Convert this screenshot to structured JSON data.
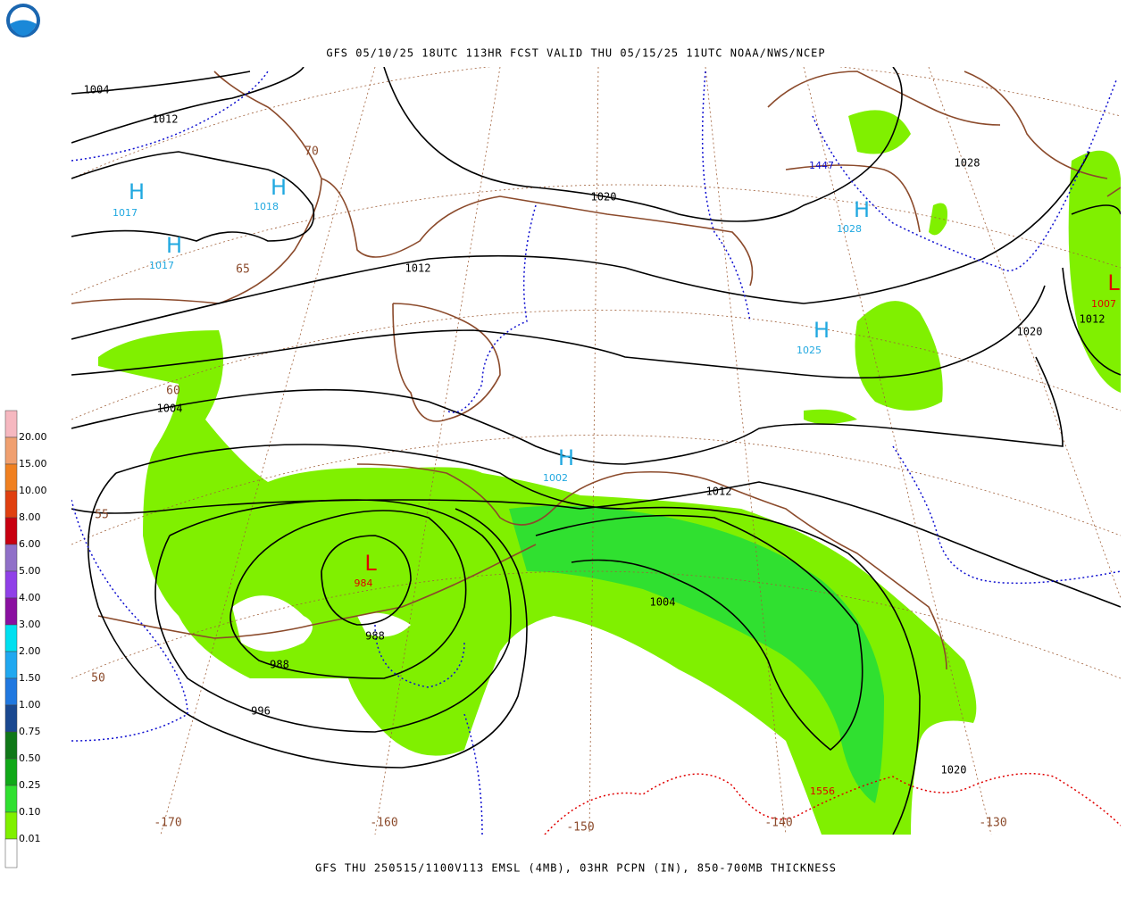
{
  "header": {
    "title": "GFS 05/10/25 18UTC 113HR FCST VALID THU 05/15/25 11UTC NOAA/NWS/NCEP"
  },
  "footer": {
    "caption": "GFS THU 250515/1100V113 EMSL (4MB), 03HR PCPN (IN), 850-700MB THICKNESS"
  },
  "legend": {
    "entries": [
      {
        "label": "20.00",
        "color": "#f6b8c0"
      },
      {
        "label": "15.00",
        "color": "#f0a070"
      },
      {
        "label": "10.00",
        "color": "#f08020"
      },
      {
        "label": "8.00",
        "color": "#e04010"
      },
      {
        "label": "6.00",
        "color": "#c80010"
      },
      {
        "label": "5.00",
        "color": "#9070c8"
      },
      {
        "label": "4.00",
        "color": "#9040e8"
      },
      {
        "label": "3.00",
        "color": "#8a10a0"
      },
      {
        "label": "2.00",
        "color": "#00e0f0"
      },
      {
        "label": "1.50",
        "color": "#20a8f0"
      },
      {
        "label": "1.00",
        "color": "#2078e0"
      },
      {
        "label": "0.75",
        "color": "#1a4890"
      },
      {
        "label": "0.50",
        "color": "#107818"
      },
      {
        "label": "0.25",
        "color": "#10a818"
      },
      {
        "label": "0.10",
        "color": "#30e030"
      },
      {
        "label": "0.01",
        "color": "#80f000"
      }
    ],
    "below_color": "#ffffff"
  },
  "map": {
    "isobar_labels": [
      "1004",
      "1012",
      "1020",
      "1012",
      "1004",
      "1012",
      "1004",
      "988",
      "988",
      "996",
      "1020",
      "1028",
      "1020",
      "1012"
    ],
    "highs": [
      {
        "symbol": "H",
        "value": "1017"
      },
      {
        "symbol": "H",
        "value": "1018"
      },
      {
        "symbol": "H",
        "value": "1017"
      },
      {
        "symbol": "H",
        "value": "1028"
      },
      {
        "symbol": "H",
        "value": "1025"
      },
      {
        "symbol": "H",
        "value": "1002"
      }
    ],
    "lows": [
      {
        "symbol": "L",
        "value": "984"
      },
      {
        "symbol": "L",
        "value": "1007"
      }
    ],
    "thickness_labels": [
      "1447",
      "1556"
    ],
    "latitude_labels": [
      "70",
      "65",
      "60",
      "55",
      "50"
    ],
    "longitude_labels": [
      "-170",
      "-160",
      "-150",
      "-140",
      "-130"
    ]
  }
}
